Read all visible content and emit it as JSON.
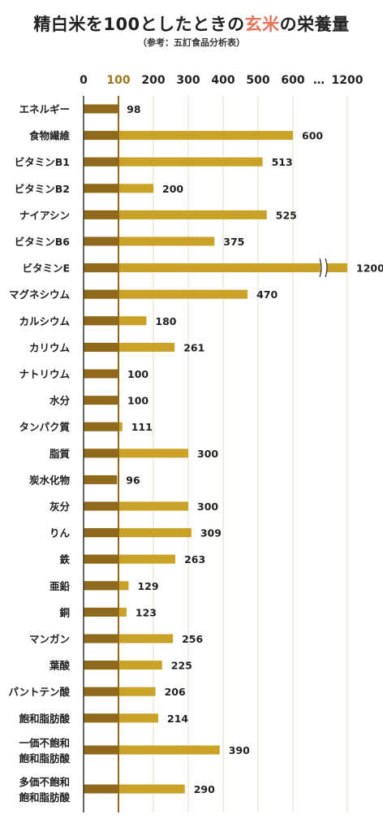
{
  "title": {
    "prefix": "精白米を100としたときの",
    "highlight": "玄米",
    "suffix": "の栄養量"
  },
  "subtitle": "（参考：五訂食品分析表）",
  "colors": {
    "bar_light": "#c9a227",
    "bar_dark": "#8f6a1c",
    "baseline": "#8f6a1c",
    "grid": "#e8dcc0",
    "axis_label_100": "#9a7a1a",
    "title_highlight": "#e8735a"
  },
  "chart_data": {
    "type": "bar",
    "orientation": "horizontal",
    "x_ticks": [
      "0",
      "100",
      "200",
      "300",
      "400",
      "500",
      "600",
      "…",
      "1200"
    ],
    "axis_break": {
      "between": [
        600,
        1200
      ]
    },
    "reference_line": 100,
    "categories": [
      "エネルギー",
      "食物繊維",
      "ビタミンB1",
      "ビタミンB2",
      "ナイアシン",
      "ビタミンB6",
      "ビタミンE",
      "マグネシウム",
      "カルシウム",
      "カリウム",
      "ナトリウム",
      "水分",
      "タンパク質",
      "脂質",
      "炭水化物",
      "灰分",
      "りん",
      "鉄",
      "亜鉛",
      "銅",
      "マンガン",
      "葉酸",
      "パントテン酸",
      "飽和脂肪酸",
      "一価不飽和\n飽和脂肪酸",
      "多価不飽和\n飽和脂肪酸"
    ],
    "values": [
      98,
      600,
      513,
      200,
      525,
      375,
      1200,
      470,
      180,
      261,
      100,
      100,
      111,
      300,
      96,
      300,
      309,
      263,
      129,
      123,
      256,
      225,
      206,
      214,
      390,
      290
    ],
    "value_labels": [
      "98",
      "600",
      "513",
      "200",
      "525",
      "375",
      "1200",
      "470",
      "180",
      "261",
      "100",
      "100",
      "111",
      "300",
      "96",
      "300",
      "309",
      "263",
      "129",
      "123",
      "256",
      "225",
      "206",
      "214",
      "390",
      "290"
    ]
  }
}
